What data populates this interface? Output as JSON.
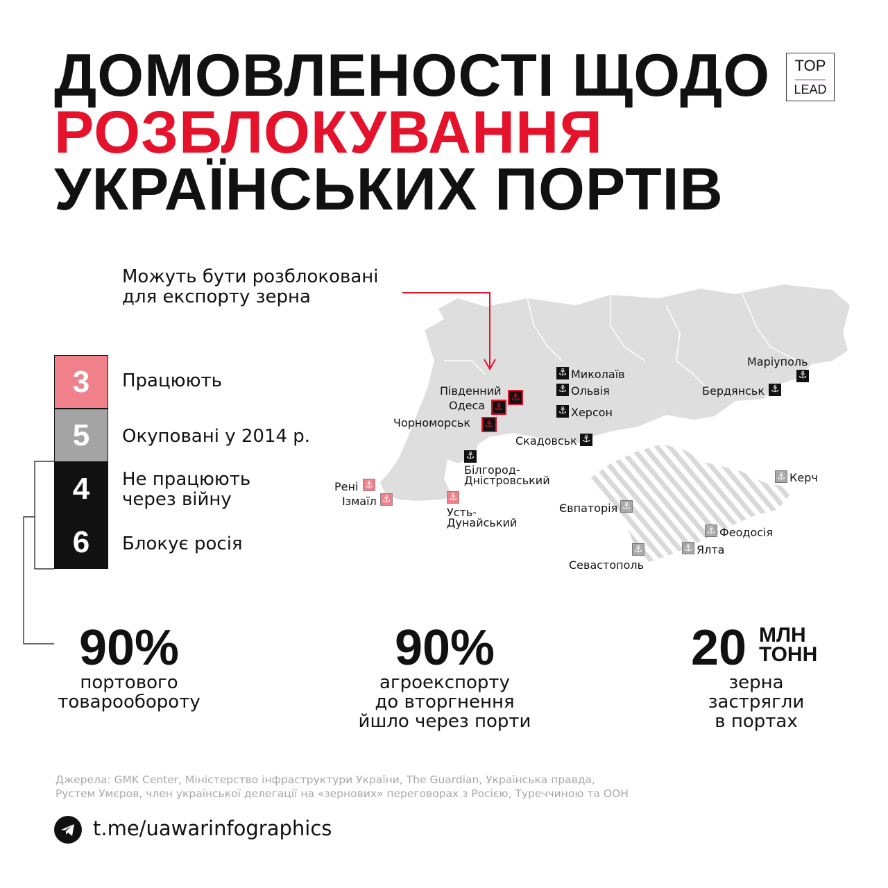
{
  "title": {
    "line1": "ДОМОВЛЕНОСТІ ЩОДО",
    "line2": "РОЗБЛОКУВАННЯ",
    "line3": "УКРАЇНСЬКИХ ПОРТІВ"
  },
  "logo": {
    "top": "TOP",
    "bottom": "LEAD"
  },
  "callout": "Можуть бути розблоковані\nдля експорту зерна",
  "legend": [
    {
      "count": "3",
      "label": "Працюють",
      "color": "#f0808a"
    },
    {
      "count": "5",
      "label": "Окуповані у 2014 р.",
      "color": "#a4a4a4"
    },
    {
      "count": "4",
      "label": "Не працюють\nчерез війну",
      "color": "#111111"
    },
    {
      "count": "6",
      "label": "Блокує росія",
      "color": "#111111"
    }
  ],
  "stats": [
    {
      "value": "90%",
      "desc": "портового\nтоварообороту"
    },
    {
      "value": "90%",
      "desc": "агроекспорту\nдо вторгнення\nйшло через порти"
    },
    {
      "value": "20",
      "unit_top": "МЛН",
      "unit_bottom": "ТОНН",
      "desc": "зерна\nзастрягли\nв портах"
    }
  ],
  "ports": {
    "pivdennyi": "Південний",
    "odesa": "Одеса",
    "chornomorsk": "Чорноморськ",
    "mykolaiv": "Миколаїв",
    "olviia": "Ольвія",
    "kherson": "Херсон",
    "skadovsk": "Скадовськ",
    "mariupol": "Маріуполь",
    "berdiansk": "Бердянськ",
    "bilhorod": "Білгород-\nДністровський",
    "reni": "Рені",
    "izmail": "Ізмаїл",
    "ust_dunaiskyi": "Усть-\nДунайський",
    "yevpatoriia": "Євпаторія",
    "kerch": "Керч",
    "feodosiia": "Феодосія",
    "yalta": "Ялта",
    "sevastopol": "Севастополь"
  },
  "icons": {
    "port": "anchor-icon",
    "telegram": "telegram-icon"
  },
  "sources": "Джерела: GMK Center, Міністерство інфраструктури України, The Guardian, Українська правда,\nРустем Умєров, член української делегації на «зернових» переговорах з Росією, Туреччиною та ООН",
  "telegram_link": "t.me/uawarinfographics",
  "colors": {
    "accent_red": "#e5122b",
    "pink": "#f0808a",
    "grey": "#a4a4a4",
    "map_land": "#dedede",
    "black": "#111111"
  }
}
